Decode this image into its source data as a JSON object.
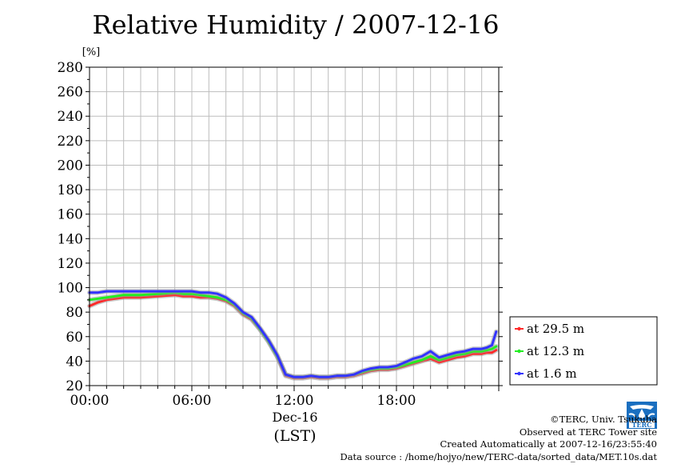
{
  "chart_data": {
    "type": "line",
    "title": "Relative Humidity / 2007-12-16",
    "ylabel": "[%]",
    "xlabel": "(LST)",
    "x_date_label": "Dec-16",
    "ylim": [
      20,
      280
    ],
    "yticks": [
      20,
      40,
      60,
      80,
      100,
      120,
      140,
      160,
      180,
      200,
      220,
      240,
      260,
      280
    ],
    "xlim": [
      "00:00",
      "24:00"
    ],
    "xticks": [
      "00:00",
      "06:00",
      "12:00",
      "18:00"
    ],
    "grid": true,
    "legend_position": "right",
    "x_hours": [
      0,
      0.5,
      1,
      1.5,
      2,
      3,
      4,
      5,
      5.5,
      6,
      6.5,
      7,
      7.5,
      8,
      8.5,
      9,
      9.5,
      10,
      10.5,
      11,
      11.25,
      11.5,
      12,
      12.5,
      13,
      13.5,
      14,
      14.5,
      15,
      15.5,
      16,
      16.5,
      17,
      17.5,
      18,
      18.5,
      19,
      19.5,
      20,
      20.5,
      21,
      21.5,
      22,
      22.5,
      23,
      23.3,
      23.6,
      23.85
    ],
    "series": [
      {
        "name": "at 29.5 m",
        "color": "#ff2a2a",
        "values": [
          85,
          88,
          90,
          91,
          92,
          92,
          93,
          94,
          93,
          93,
          92,
          92,
          91,
          89,
          85,
          78,
          74,
          66,
          56,
          44,
          36,
          28,
          26,
          26,
          27,
          26,
          26,
          27,
          27,
          28,
          30,
          32,
          33,
          33,
          34,
          36,
          38,
          40,
          42,
          39,
          41,
          43,
          44,
          46,
          46,
          47,
          47,
          49
        ]
      },
      {
        "name": "at 12.3 m",
        "color": "#22ee22",
        "values": [
          90,
          91,
          92,
          93,
          94,
          94,
          95,
          96,
          95,
          95,
          94,
          93,
          92,
          90,
          86,
          79,
          75,
          66,
          56,
          44,
          37,
          29,
          27,
          27,
          28,
          27,
          27,
          28,
          28,
          29,
          31,
          33,
          34,
          34,
          35,
          37,
          39,
          41,
          44,
          41,
          43,
          45,
          46,
          48,
          48,
          49,
          50,
          52
        ]
      },
      {
        "name": "at 1.6 m",
        "color": "#3333ff",
        "values": [
          96,
          96,
          97,
          97,
          97,
          97,
          97,
          97,
          97,
          97,
          96,
          96,
          95,
          92,
          87,
          80,
          76,
          67,
          57,
          45,
          37,
          29,
          27,
          27,
          28,
          27,
          27,
          28,
          28,
          29,
          32,
          34,
          35,
          35,
          36,
          39,
          42,
          44,
          48,
          43,
          45,
          47,
          48,
          50,
          50,
          51,
          53,
          64
        ]
      }
    ]
  },
  "credits": {
    "copyright": "©TERC, Univ. Tsukuba",
    "observed": "Observed at TERC Tower site",
    "created": "Created Automatically at 2007-12-16/23:55:40",
    "source": "Data source : /home/hojyo/new/TERC-data/sorted_data/MET.10s.dat"
  },
  "logo": {
    "text": "TERC",
    "color": "#1a6fc0"
  }
}
